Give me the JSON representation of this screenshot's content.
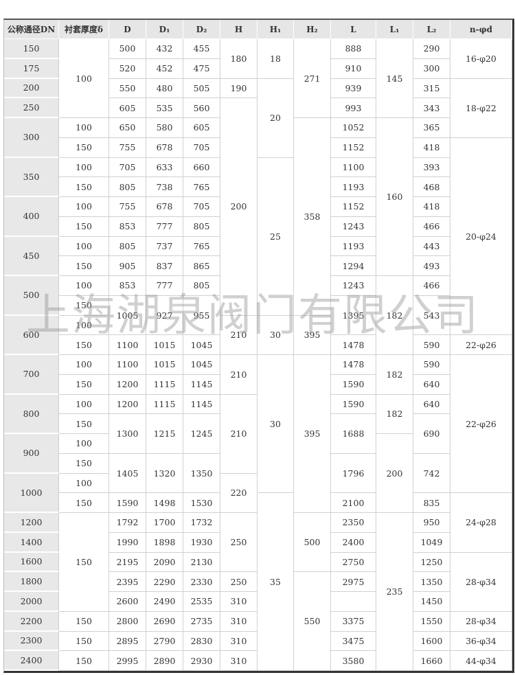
{
  "headers": [
    "公称通径DN",
    "衬套厚度δ",
    "D",
    "D₁",
    "D₂",
    "H",
    "H₁",
    "H₂",
    "L",
    "L₁",
    "L₂",
    "n-φd"
  ],
  "watermark": "上海湖泉阀门有限公司",
  "columns": [
    {
      "key": "DN",
      "cells": [
        [
          "150",
          1
        ],
        [
          "175",
          1
        ],
        [
          "200",
          1
        ],
        [
          "250",
          1
        ],
        [
          "300",
          2
        ],
        [
          "350",
          2
        ],
        [
          "400",
          2
        ],
        [
          "450",
          2
        ],
        [
          "500",
          2
        ],
        [
          "600",
          2
        ],
        [
          "700",
          2
        ],
        [
          "800",
          2
        ],
        [
          "900",
          2
        ],
        [
          "1000",
          2
        ],
        [
          "1200",
          1
        ],
        [
          "1400",
          1
        ],
        [
          "1600",
          1
        ],
        [
          "1800",
          1
        ],
        [
          "2000",
          1
        ],
        [
          "2200",
          1
        ],
        [
          "2300",
          1
        ],
        [
          "2400",
          1
        ]
      ]
    },
    {
      "key": "delta",
      "cells": [
        [
          "100",
          4
        ],
        [
          "100",
          1
        ],
        [
          "150",
          1
        ],
        [
          "100",
          1
        ],
        [
          "150",
          1
        ],
        [
          "100",
          1
        ],
        [
          "150",
          1
        ],
        [
          "100",
          1
        ],
        [
          "150",
          1
        ],
        [
          "100",
          1
        ],
        [
          "150",
          1
        ],
        [
          "100",
          1
        ],
        [
          "150",
          1
        ],
        [
          "100",
          1
        ],
        [
          "150",
          1
        ],
        [
          "100",
          1
        ],
        [
          "150",
          1
        ],
        [
          "100",
          1
        ],
        [
          "150",
          1
        ],
        [
          "100",
          1
        ],
        [
          "150",
          1
        ],
        [
          "150",
          5
        ],
        [
          "150",
          1
        ],
        [
          "150",
          1
        ],
        [
          "150",
          1
        ]
      ]
    },
    {
      "key": "D",
      "cells": [
        [
          "500",
          1
        ],
        [
          "520",
          1
        ],
        [
          "550",
          1
        ],
        [
          "605",
          1
        ],
        [
          "650",
          1
        ],
        [
          "755",
          1
        ],
        [
          "705",
          1
        ],
        [
          "805",
          1
        ],
        [
          "755",
          1
        ],
        [
          "853",
          1
        ],
        [
          "805",
          1
        ],
        [
          "905",
          1
        ],
        [
          "853",
          1
        ],
        [
          "1005",
          2
        ],
        [
          "1100",
          1
        ],
        [
          "1100",
          1
        ],
        [
          "1200",
          1
        ],
        [
          "1200",
          1
        ],
        [
          "1300",
          2
        ],
        [
          "1405",
          2
        ],
        [
          "1590",
          1
        ],
        [
          "1792",
          1
        ],
        [
          "1990",
          1
        ],
        [
          "2195",
          1
        ],
        [
          "2395",
          1
        ],
        [
          "2600",
          1
        ],
        [
          "2800",
          1
        ],
        [
          "2895",
          1
        ],
        [
          "2995",
          1
        ]
      ]
    },
    {
      "key": "D1",
      "cells": [
        [
          "432",
          1
        ],
        [
          "452",
          1
        ],
        [
          "480",
          1
        ],
        [
          "535",
          1
        ],
        [
          "580",
          1
        ],
        [
          "678",
          1
        ],
        [
          "633",
          1
        ],
        [
          "738",
          1
        ],
        [
          "678",
          1
        ],
        [
          "777",
          1
        ],
        [
          "737",
          1
        ],
        [
          "837",
          1
        ],
        [
          "777",
          1
        ],
        [
          "927",
          2
        ],
        [
          "1015",
          1
        ],
        [
          "1015",
          1
        ],
        [
          "1115",
          1
        ],
        [
          "1115",
          1
        ],
        [
          "1215",
          2
        ],
        [
          "1320",
          2
        ],
        [
          "1498",
          1
        ],
        [
          "1700",
          1
        ],
        [
          "1898",
          1
        ],
        [
          "2090",
          1
        ],
        [
          "2290",
          1
        ],
        [
          "2490",
          1
        ],
        [
          "2690",
          1
        ],
        [
          "2790",
          1
        ],
        [
          "2890",
          1
        ]
      ]
    },
    {
      "key": "D2",
      "cells": [
        [
          "455",
          1
        ],
        [
          "475",
          1
        ],
        [
          "505",
          1
        ],
        [
          "560",
          1
        ],
        [
          "605",
          1
        ],
        [
          "705",
          1
        ],
        [
          "660",
          1
        ],
        [
          "765",
          1
        ],
        [
          "705",
          1
        ],
        [
          "805",
          1
        ],
        [
          "765",
          1
        ],
        [
          "865",
          1
        ],
        [
          "805",
          1
        ],
        [
          "955",
          2
        ],
        [
          "1045",
          1
        ],
        [
          "1045",
          1
        ],
        [
          "1145",
          1
        ],
        [
          "1145",
          1
        ],
        [
          "1245",
          2
        ],
        [
          "1350",
          2
        ],
        [
          "1530",
          1
        ],
        [
          "1732",
          1
        ],
        [
          "1930",
          1
        ],
        [
          "2130",
          1
        ],
        [
          "2330",
          1
        ],
        [
          "2535",
          1
        ],
        [
          "2735",
          1
        ],
        [
          "2830",
          1
        ],
        [
          "2930",
          1
        ]
      ]
    },
    {
      "key": "H",
      "cells": [
        [
          "180",
          2
        ],
        [
          "190",
          1
        ],
        [
          "200",
          11
        ],
        [
          "210",
          2
        ],
        [
          "210",
          2
        ],
        [
          "210",
          4
        ],
        [
          "220",
          2
        ],
        [
          "250",
          3
        ],
        [
          "250",
          1
        ],
        [
          "310",
          1
        ],
        [
          "310",
          1
        ],
        [
          "310",
          1
        ],
        [
          "310",
          1
        ]
      ]
    },
    {
      "key": "H1",
      "cells": [
        [
          "18",
          2
        ],
        [
          "20",
          4
        ],
        [
          "25",
          8
        ],
        [
          "30",
          2
        ],
        [
          "30",
          7
        ],
        [
          "35",
          9
        ]
      ]
    },
    {
      "key": "H2",
      "cells": [
        [
          "271",
          4
        ],
        [
          "358",
          10
        ],
        [
          "395",
          2
        ],
        [
          "395",
          8
        ],
        [
          "500",
          3
        ],
        [
          "550",
          5
        ]
      ]
    },
    {
      "key": "L",
      "cells": [
        [
          "888",
          1
        ],
        [
          "910",
          1
        ],
        [
          "939",
          1
        ],
        [
          "993",
          1
        ],
        [
          "1052",
          1
        ],
        [
          "1152",
          1
        ],
        [
          "1100",
          1
        ],
        [
          "1193",
          1
        ],
        [
          "1152",
          1
        ],
        [
          "1243",
          1
        ],
        [
          "1193",
          1
        ],
        [
          "1294",
          1
        ],
        [
          "1243",
          1
        ],
        [
          "1395",
          2
        ],
        [
          "1478",
          1
        ],
        [
          "1478",
          1
        ],
        [
          "1590",
          1
        ],
        [
          "1590",
          1
        ],
        [
          "1688",
          2
        ],
        [
          "1796",
          2
        ],
        [
          "2100",
          1
        ],
        [
          "2350",
          1
        ],
        [
          "2400",
          1
        ],
        [
          "2750",
          1
        ],
        [
          "2975",
          1
        ],
        [
          "",
          1
        ],
        [
          "3375",
          1
        ],
        [
          "3475",
          1
        ],
        [
          "3580",
          1
        ]
      ]
    },
    {
      "key": "L1",
      "cells": [
        [
          "145",
          4
        ],
        [
          "160",
          8
        ],
        [
          "182",
          4
        ],
        [
          "182",
          2
        ],
        [
          "182",
          2
        ],
        [
          "200",
          4
        ],
        [
          "235",
          8
        ]
      ]
    },
    {
      "key": "L2",
      "cells": [
        [
          "290",
          1
        ],
        [
          "300",
          1
        ],
        [
          "315",
          1
        ],
        [
          "343",
          1
        ],
        [
          "365",
          1
        ],
        [
          "418",
          1
        ],
        [
          "393",
          1
        ],
        [
          "468",
          1
        ],
        [
          "418",
          1
        ],
        [
          "466",
          1
        ],
        [
          "443",
          1
        ],
        [
          "493",
          1
        ],
        [
          "466",
          1
        ],
        [
          "543",
          2
        ],
        [
          "590",
          1
        ],
        [
          "590",
          1
        ],
        [
          "640",
          1
        ],
        [
          "640",
          1
        ],
        [
          "690",
          2
        ],
        [
          "742",
          2
        ],
        [
          "835",
          1
        ],
        [
          "950",
          1
        ],
        [
          "1049",
          1
        ],
        [
          "1250",
          1
        ],
        [
          "1350",
          1
        ],
        [
          "1450",
          1
        ],
        [
          "1550",
          1
        ],
        [
          "1600",
          1
        ],
        [
          "1660",
          1
        ]
      ]
    },
    {
      "key": "n_phi_d",
      "cells": [
        [
          "16-φ20",
          2
        ],
        [
          "18-φ22",
          3
        ],
        [
          "20-φ24",
          10
        ],
        [
          "22-φ26",
          1
        ],
        [
          "22-φ26",
          7
        ],
        [
          "24-φ28",
          3
        ],
        [
          "28-φ34",
          3
        ],
        [
          "28-φ34",
          1
        ],
        [
          "36-φ34",
          1
        ],
        [
          "44-φ34",
          1
        ]
      ]
    }
  ]
}
